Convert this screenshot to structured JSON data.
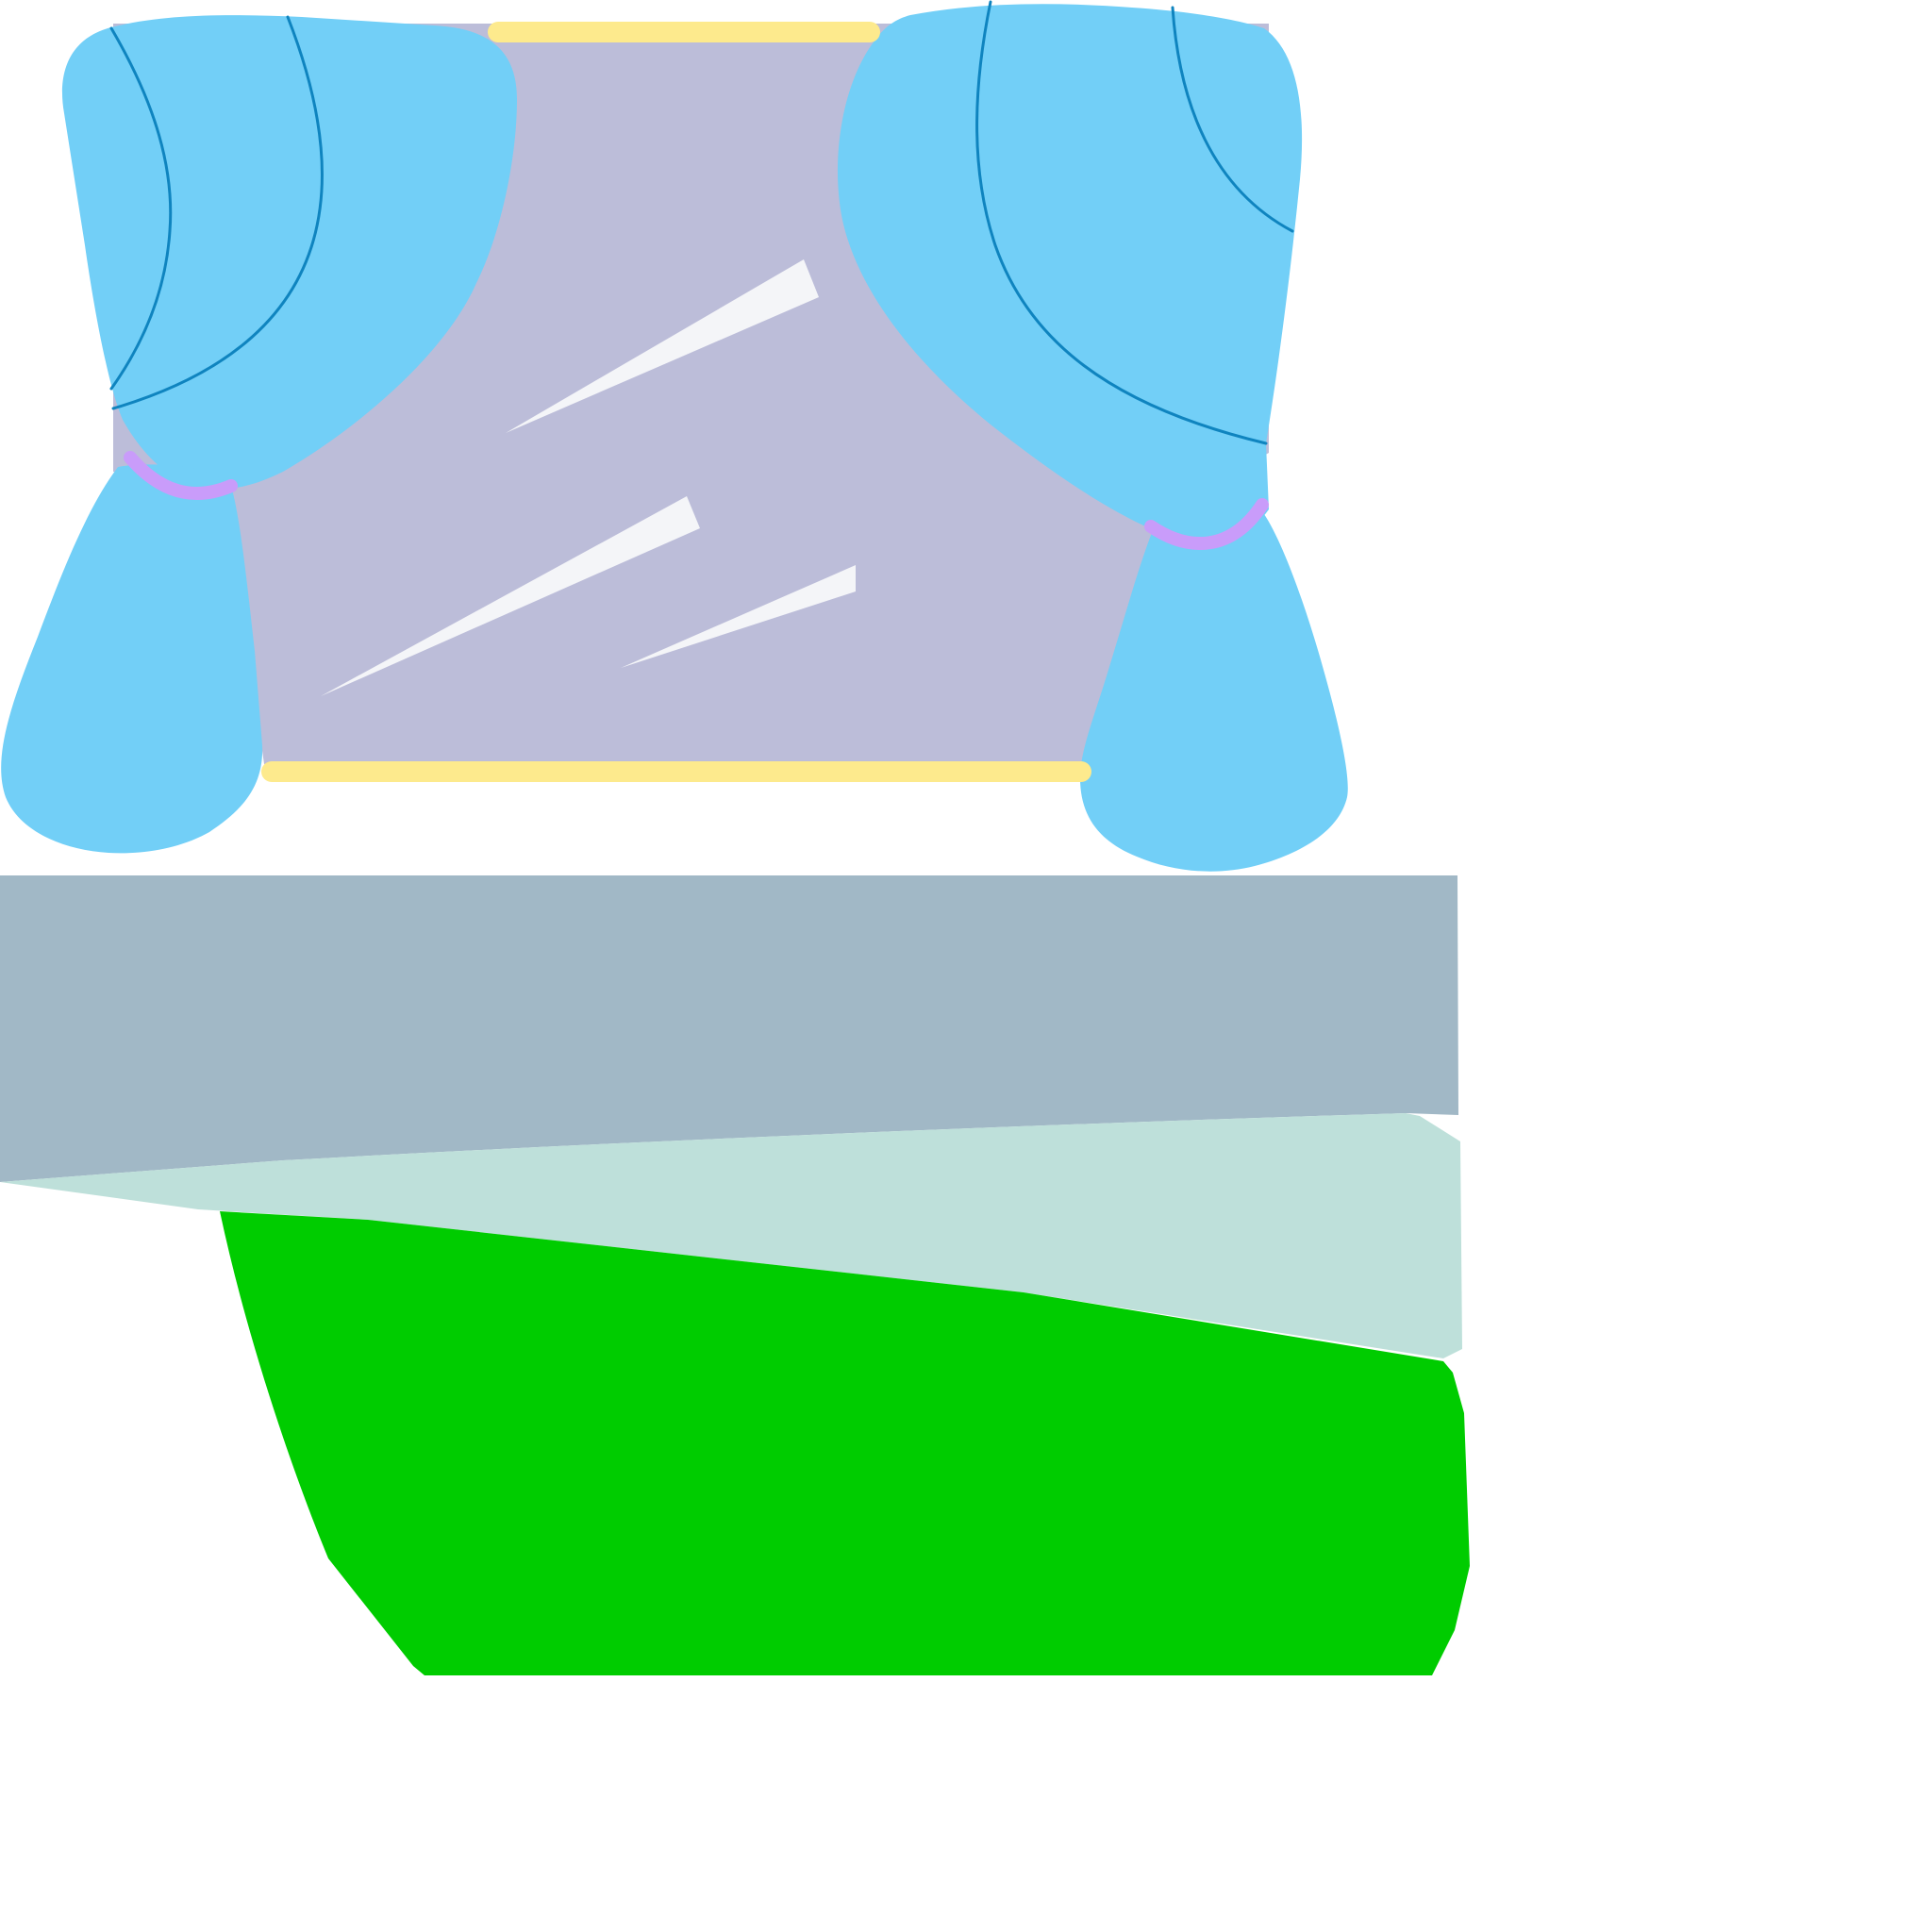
{
  "colors": {
    "background": "#ffffff",
    "window_glass": "#bcbdd9",
    "glass_glint": "#f4f5f8",
    "curtain": "#72cff7",
    "curtain_fold_line": "#0f84bf",
    "curtain_tieback": "#c99cfa",
    "curtain_rod": "#fdea8d",
    "floor_upper": "#a1b8c6",
    "floor_middle": "#bee0da",
    "floor_lower": "#00cc00"
  },
  "icons": {
    "left_curtain": "curtain-left-icon",
    "right_curtain": "curtain-right-icon",
    "window": "window-icon"
  }
}
